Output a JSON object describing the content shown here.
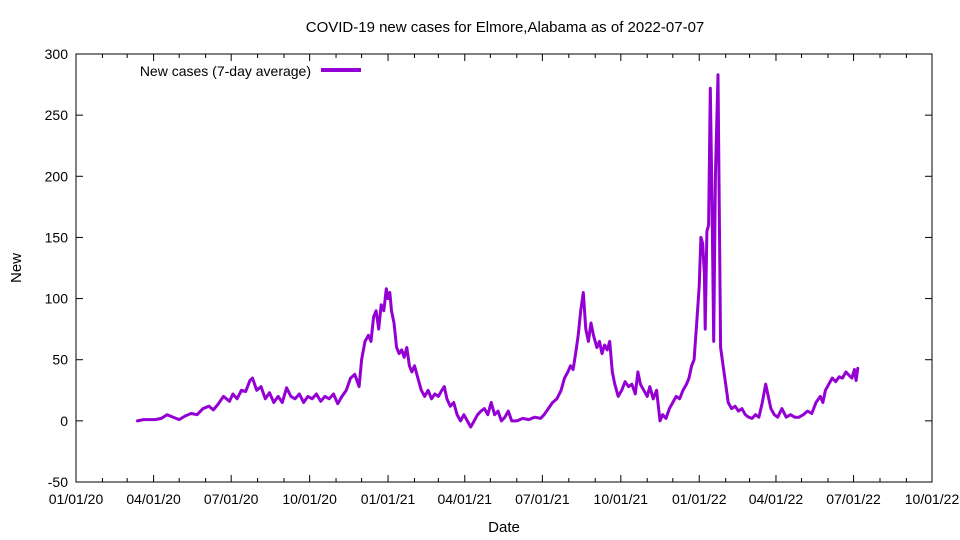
{
  "chart_data": {
    "type": "line",
    "title": "COVID-19 new cases for Elmore,Alabama as of 2022-07-07",
    "xlabel": "Date",
    "ylabel": "New",
    "xlim": [
      "2020-01-01",
      "2022-10-01"
    ],
    "ylim": [
      -50,
      300
    ],
    "x_ticks": [
      "01/01/20",
      "04/01/20",
      "07/01/20",
      "10/01/20",
      "01/01/21",
      "04/01/21",
      "07/01/21",
      "10/01/21",
      "01/01/22",
      "04/01/22",
      "07/01/22",
      "10/01/22"
    ],
    "y_ticks": [
      -50,
      0,
      50,
      100,
      150,
      200,
      250,
      300
    ],
    "grid": false,
    "legend_position": "top-left",
    "series": [
      {
        "name": "New cases (7-day average)",
        "color": "#9400d3",
        "points": [
          [
            "2020-03-13",
            0
          ],
          [
            "2020-03-20",
            1
          ],
          [
            "2020-03-27",
            1
          ],
          [
            "2020-04-03",
            1
          ],
          [
            "2020-04-10",
            2
          ],
          [
            "2020-04-17",
            5
          ],
          [
            "2020-04-24",
            3
          ],
          [
            "2020-05-01",
            1
          ],
          [
            "2020-05-08",
            4
          ],
          [
            "2020-05-15",
            6
          ],
          [
            "2020-05-22",
            5
          ],
          [
            "2020-05-29",
            10
          ],
          [
            "2020-06-05",
            12
          ],
          [
            "2020-06-10",
            9
          ],
          [
            "2020-06-15",
            13
          ],
          [
            "2020-06-22",
            20
          ],
          [
            "2020-06-29",
            16
          ],
          [
            "2020-07-03",
            22
          ],
          [
            "2020-07-08",
            18
          ],
          [
            "2020-07-13",
            25
          ],
          [
            "2020-07-18",
            24
          ],
          [
            "2020-07-23",
            33
          ],
          [
            "2020-07-26",
            35
          ],
          [
            "2020-07-31",
            25
          ],
          [
            "2020-08-05",
            28
          ],
          [
            "2020-08-10",
            18
          ],
          [
            "2020-08-15",
            23
          ],
          [
            "2020-08-20",
            15
          ],
          [
            "2020-08-25",
            20
          ],
          [
            "2020-08-30",
            15
          ],
          [
            "2020-09-04",
            27
          ],
          [
            "2020-09-09",
            20
          ],
          [
            "2020-09-14",
            18
          ],
          [
            "2020-09-19",
            22
          ],
          [
            "2020-09-24",
            15
          ],
          [
            "2020-09-29",
            20
          ],
          [
            "2020-10-04",
            18
          ],
          [
            "2020-10-09",
            22
          ],
          [
            "2020-10-14",
            16
          ],
          [
            "2020-10-19",
            20
          ],
          [
            "2020-10-24",
            18
          ],
          [
            "2020-10-29",
            22
          ],
          [
            "2020-11-03",
            14
          ],
          [
            "2020-11-08",
            20
          ],
          [
            "2020-11-13",
            25
          ],
          [
            "2020-11-18",
            35
          ],
          [
            "2020-11-23",
            38
          ],
          [
            "2020-11-28",
            28
          ],
          [
            "2020-12-01",
            50
          ],
          [
            "2020-12-05",
            65
          ],
          [
            "2020-12-09",
            70
          ],
          [
            "2020-12-12",
            65
          ],
          [
            "2020-12-15",
            85
          ],
          [
            "2020-12-18",
            90
          ],
          [
            "2020-12-21",
            75
          ],
          [
            "2020-12-24",
            95
          ],
          [
            "2020-12-27",
            90
          ],
          [
            "2020-12-30",
            108
          ],
          [
            "2021-01-01",
            100
          ],
          [
            "2021-01-03",
            105
          ],
          [
            "2021-01-05",
            90
          ],
          [
            "2021-01-08",
            80
          ],
          [
            "2021-01-11",
            60
          ],
          [
            "2021-01-14",
            55
          ],
          [
            "2021-01-17",
            58
          ],
          [
            "2021-01-20",
            52
          ],
          [
            "2021-01-23",
            60
          ],
          [
            "2021-01-26",
            45
          ],
          [
            "2021-01-29",
            40
          ],
          [
            "2021-02-01",
            45
          ],
          [
            "2021-02-05",
            35
          ],
          [
            "2021-02-09",
            25
          ],
          [
            "2021-02-13",
            20
          ],
          [
            "2021-02-17",
            25
          ],
          [
            "2021-02-21",
            18
          ],
          [
            "2021-02-25",
            22
          ],
          [
            "2021-03-01",
            20
          ],
          [
            "2021-03-05",
            25
          ],
          [
            "2021-03-08",
            28
          ],
          [
            "2021-03-11",
            18
          ],
          [
            "2021-03-15",
            12
          ],
          [
            "2021-03-19",
            15
          ],
          [
            "2021-03-23",
            5
          ],
          [
            "2021-03-27",
            0
          ],
          [
            "2021-03-31",
            5
          ],
          [
            "2021-04-04",
            0
          ],
          [
            "2021-04-08",
            -5
          ],
          [
            "2021-04-12",
            0
          ],
          [
            "2021-04-16",
            5
          ],
          [
            "2021-04-20",
            8
          ],
          [
            "2021-04-24",
            10
          ],
          [
            "2021-04-28",
            5
          ],
          [
            "2021-05-02",
            15
          ],
          [
            "2021-05-06",
            5
          ],
          [
            "2021-05-10",
            8
          ],
          [
            "2021-05-14",
            0
          ],
          [
            "2021-05-18",
            3
          ],
          [
            "2021-05-22",
            8
          ],
          [
            "2021-05-26",
            0
          ],
          [
            "2021-06-01",
            0
          ],
          [
            "2021-06-08",
            2
          ],
          [
            "2021-06-15",
            1
          ],
          [
            "2021-06-22",
            3
          ],
          [
            "2021-06-29",
            2
          ],
          [
            "2021-07-03",
            5
          ],
          [
            "2021-07-08",
            10
          ],
          [
            "2021-07-13",
            15
          ],
          [
            "2021-07-18",
            18
          ],
          [
            "2021-07-23",
            25
          ],
          [
            "2021-07-27",
            35
          ],
          [
            "2021-07-31",
            40
          ],
          [
            "2021-08-03",
            45
          ],
          [
            "2021-08-06",
            42
          ],
          [
            "2021-08-09",
            55
          ],
          [
            "2021-08-12",
            70
          ],
          [
            "2021-08-15",
            90
          ],
          [
            "2021-08-18",
            105
          ],
          [
            "2021-08-21",
            75
          ],
          [
            "2021-08-24",
            65
          ],
          [
            "2021-08-27",
            80
          ],
          [
            "2021-08-30",
            70
          ],
          [
            "2021-09-03",
            60
          ],
          [
            "2021-09-06",
            65
          ],
          [
            "2021-09-09",
            55
          ],
          [
            "2021-09-12",
            62
          ],
          [
            "2021-09-15",
            58
          ],
          [
            "2021-09-18",
            65
          ],
          [
            "2021-09-21",
            40
          ],
          [
            "2021-09-24",
            30
          ],
          [
            "2021-09-28",
            20
          ],
          [
            "2021-10-02",
            25
          ],
          [
            "2021-10-06",
            32
          ],
          [
            "2021-10-10",
            28
          ],
          [
            "2021-10-14",
            30
          ],
          [
            "2021-10-18",
            22
          ],
          [
            "2021-10-21",
            40
          ],
          [
            "2021-10-24",
            30
          ],
          [
            "2021-10-28",
            25
          ],
          [
            "2021-11-01",
            20
          ],
          [
            "2021-11-04",
            28
          ],
          [
            "2021-11-08",
            18
          ],
          [
            "2021-11-12",
            25
          ],
          [
            "2021-11-16",
            0
          ],
          [
            "2021-11-19",
            5
          ],
          [
            "2021-11-23",
            2
          ],
          [
            "2021-11-27",
            10
          ],
          [
            "2021-12-01",
            15
          ],
          [
            "2021-12-05",
            20
          ],
          [
            "2021-12-09",
            18
          ],
          [
            "2021-12-13",
            25
          ],
          [
            "2021-12-17",
            30
          ],
          [
            "2021-12-20",
            35
          ],
          [
            "2021-12-23",
            45
          ],
          [
            "2021-12-26",
            50
          ],
          [
            "2021-12-29",
            80
          ],
          [
            "2022-01-01",
            110
          ],
          [
            "2022-01-03",
            150
          ],
          [
            "2022-01-05",
            145
          ],
          [
            "2022-01-07",
            120
          ],
          [
            "2022-01-08",
            75
          ],
          [
            "2022-01-10",
            155
          ],
          [
            "2022-01-12",
            160
          ],
          [
            "2022-01-14",
            272
          ],
          [
            "2022-01-16",
            180
          ],
          [
            "2022-01-18",
            65
          ],
          [
            "2022-01-20",
            200
          ],
          [
            "2022-01-23",
            283
          ],
          [
            "2022-01-26",
            60
          ],
          [
            "2022-01-29",
            45
          ],
          [
            "2022-02-01",
            30
          ],
          [
            "2022-02-04",
            15
          ],
          [
            "2022-02-08",
            10
          ],
          [
            "2022-02-12",
            12
          ],
          [
            "2022-02-16",
            8
          ],
          [
            "2022-02-20",
            10
          ],
          [
            "2022-02-24",
            5
          ],
          [
            "2022-02-28",
            3
          ],
          [
            "2022-03-04",
            2
          ],
          [
            "2022-03-08",
            5
          ],
          [
            "2022-03-12",
            3
          ],
          [
            "2022-03-16",
            15
          ],
          [
            "2022-03-20",
            30
          ],
          [
            "2022-03-23",
            20
          ],
          [
            "2022-03-26",
            10
          ],
          [
            "2022-03-30",
            5
          ],
          [
            "2022-04-03",
            3
          ],
          [
            "2022-04-08",
            10
          ],
          [
            "2022-04-13",
            3
          ],
          [
            "2022-04-18",
            5
          ],
          [
            "2022-04-23",
            3
          ],
          [
            "2022-04-28",
            3
          ],
          [
            "2022-05-03",
            5
          ],
          [
            "2022-05-08",
            8
          ],
          [
            "2022-05-13",
            6
          ],
          [
            "2022-05-18",
            15
          ],
          [
            "2022-05-23",
            20
          ],
          [
            "2022-05-26",
            15
          ],
          [
            "2022-05-29",
            25
          ],
          [
            "2022-06-02",
            30
          ],
          [
            "2022-06-06",
            35
          ],
          [
            "2022-06-10",
            32
          ],
          [
            "2022-06-14",
            36
          ],
          [
            "2022-06-18",
            35
          ],
          [
            "2022-06-22",
            40
          ],
          [
            "2022-06-26",
            37
          ],
          [
            "2022-06-29",
            35
          ],
          [
            "2022-07-02",
            42
          ],
          [
            "2022-07-04",
            33
          ],
          [
            "2022-07-06",
            43
          ]
        ]
      }
    ]
  }
}
